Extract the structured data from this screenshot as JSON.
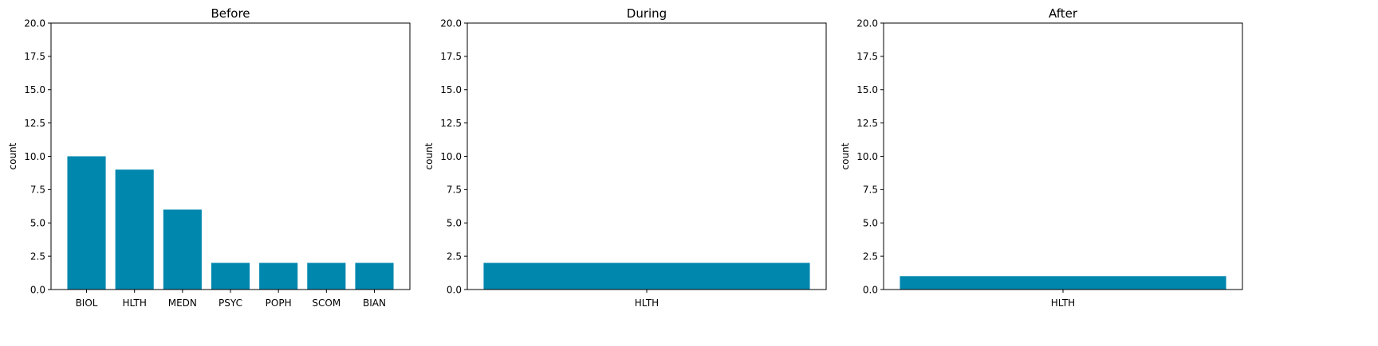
{
  "chart_data": [
    {
      "type": "bar",
      "title": "Before",
      "xlabel": "",
      "ylabel": "count",
      "ylim": [
        0,
        20
      ],
      "yticks": [
        "0.0",
        "2.5",
        "5.0",
        "7.5",
        "10.0",
        "12.5",
        "15.0",
        "17.5",
        "20.0"
      ],
      "categories": [
        "BIOL",
        "HLTH",
        "MEDN",
        "PSYC",
        "POPH",
        "SCOM",
        "BIAN"
      ],
      "values": [
        10,
        9,
        6,
        2,
        2,
        2,
        2
      ],
      "bar_color": "#0087AE"
    },
    {
      "type": "bar",
      "title": "During",
      "xlabel": "",
      "ylabel": "count",
      "ylim": [
        0,
        20
      ],
      "yticks": [
        "0.0",
        "2.5",
        "5.0",
        "7.5",
        "10.0",
        "12.5",
        "15.0",
        "17.5",
        "20.0"
      ],
      "categories": [
        "HLTH"
      ],
      "values": [
        2
      ],
      "bar_color": "#0087AE"
    },
    {
      "type": "bar",
      "title": "After",
      "xlabel": "",
      "ylabel": "count",
      "ylim": [
        0,
        20
      ],
      "yticks": [
        "0.0",
        "2.5",
        "5.0",
        "7.5",
        "10.0",
        "12.5",
        "15.0",
        "17.5",
        "20.0"
      ],
      "categories": [
        "HLTH"
      ],
      "values": [
        1
      ],
      "bar_color": "#0087AE"
    }
  ]
}
